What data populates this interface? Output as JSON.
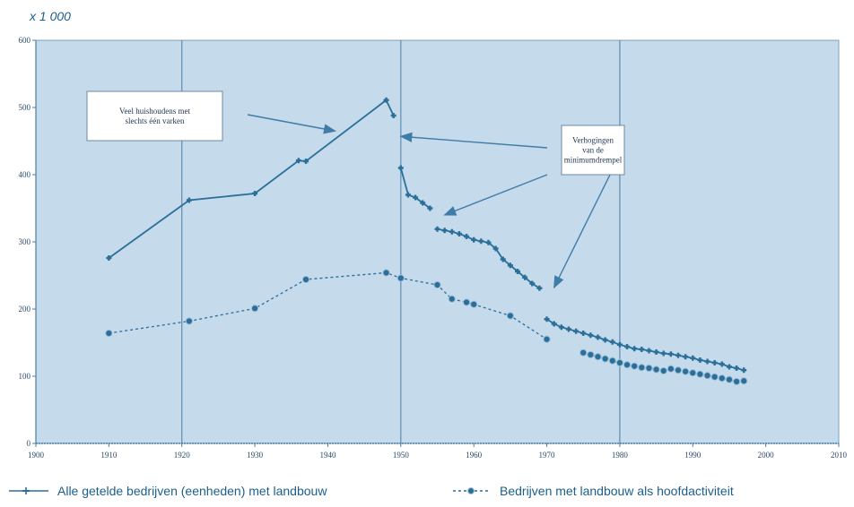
{
  "unit_label": "x 1 000",
  "colors": {
    "plot_bg": "#c5daea",
    "series": "#2a6f9a",
    "grid": "#5d8db0"
  },
  "chart_data": {
    "type": "line",
    "title": "",
    "xlabel": "",
    "ylabel": "",
    "xlim": [
      1900,
      2010
    ],
    "ylim": [
      0,
      600
    ],
    "x_ticks": [
      "1900",
      "1910",
      "1920",
      "1930",
      "1940",
      "1950",
      "1960",
      "1970",
      "1980",
      "1990",
      "2000",
      "2010"
    ],
    "y_ticks": [
      "0",
      "100",
      "200",
      "300",
      "400",
      "500",
      "600"
    ],
    "vertical_gridlines_at": [
      1920,
      1950,
      1980
    ],
    "legend_position": "bottom",
    "series": [
      {
        "name": "Alle getelde bedrijven (eenheden) met landbouw",
        "marker": "plus",
        "style": "solid",
        "segments": [
          [
            [
              1910,
              276
            ],
            [
              1921,
              362
            ],
            [
              1930,
              372
            ],
            [
              1936,
              421
            ],
            [
              1937,
              420
            ],
            [
              1948,
              511
            ],
            [
              1949,
              488
            ]
          ],
          [
            [
              1950,
              410
            ],
            [
              1951,
              370
            ],
            [
              1952,
              366
            ],
            [
              1953,
              358
            ],
            [
              1954,
              350
            ]
          ],
          [
            [
              1955,
              319
            ],
            [
              1956,
              317
            ],
            [
              1957,
              315
            ],
            [
              1958,
              312
            ],
            [
              1959,
              308
            ],
            [
              1960,
              303
            ],
            [
              1961,
              301
            ],
            [
              1962,
              299
            ],
            [
              1963,
              290
            ],
            [
              1964,
              274
            ],
            [
              1965,
              265
            ],
            [
              1966,
              256
            ],
            [
              1967,
              247
            ],
            [
              1968,
              238
            ],
            [
              1969,
              231
            ]
          ],
          [
            [
              1970,
              185
            ],
            [
              1971,
              178
            ],
            [
              1972,
              173
            ],
            [
              1973,
              170
            ],
            [
              1974,
              167
            ],
            [
              1975,
              164
            ],
            [
              1976,
              161
            ],
            [
              1977,
              158
            ],
            [
              1978,
              154
            ],
            [
              1979,
              151
            ],
            [
              1980,
              147
            ],
            [
              1981,
              144
            ],
            [
              1982,
              141
            ],
            [
              1983,
              140
            ],
            [
              1984,
              138
            ],
            [
              1985,
              136
            ],
            [
              1986,
              134
            ],
            [
              1987,
              133
            ],
            [
              1988,
              131
            ],
            [
              1989,
              129
            ],
            [
              1990,
              127
            ],
            [
              1991,
              124
            ],
            [
              1992,
              122
            ],
            [
              1993,
              120
            ],
            [
              1994,
              118
            ],
            [
              1995,
              114
            ],
            [
              1996,
              112
            ],
            [
              1997,
              109
            ]
          ]
        ]
      },
      {
        "name": "Bedrijven met landbouw als hoofdactiviteit",
        "marker": "circle",
        "style": "dashed",
        "segments": [
          [
            [
              1910,
              164
            ],
            [
              1921,
              182
            ],
            [
              1930,
              201
            ],
            [
              1937,
              244
            ],
            [
              1948,
              254
            ],
            [
              1950,
              246
            ],
            [
              1955,
              236
            ],
            [
              1957,
              215
            ],
            [
              1959,
              210
            ],
            [
              1960,
              207
            ],
            [
              1965,
              190
            ],
            [
              1970,
              155
            ]
          ],
          [
            [
              1975,
              135
            ],
            [
              1976,
              132
            ],
            [
              1977,
              129
            ],
            [
              1978,
              126
            ],
            [
              1979,
              123
            ],
            [
              1980,
              120
            ],
            [
              1981,
              117
            ],
            [
              1982,
              115
            ],
            [
              1983,
              113
            ],
            [
              1984,
              112
            ],
            [
              1985,
              110
            ],
            [
              1986,
              108
            ],
            [
              1987,
              111
            ],
            [
              1988,
              109
            ],
            [
              1989,
              107
            ],
            [
              1990,
              105
            ],
            [
              1991,
              103
            ],
            [
              1992,
              101
            ],
            [
              1993,
              99
            ],
            [
              1994,
              97
            ],
            [
              1995,
              95
            ],
            [
              1996,
              92
            ],
            [
              1997,
              93
            ]
          ]
        ]
      }
    ],
    "annotations": [
      {
        "lines": [
          "Veel huishoudens met",
          "slechts één varken"
        ],
        "arrows_to": [
          [
            1941,
            465
          ]
        ]
      },
      {
        "lines": [
          "Verhogingen",
          "van de",
          "minimumdrempel"
        ],
        "arrows_to": [
          [
            1950,
            457
          ],
          [
            1956,
            340
          ],
          [
            1971,
            232
          ]
        ]
      }
    ]
  }
}
